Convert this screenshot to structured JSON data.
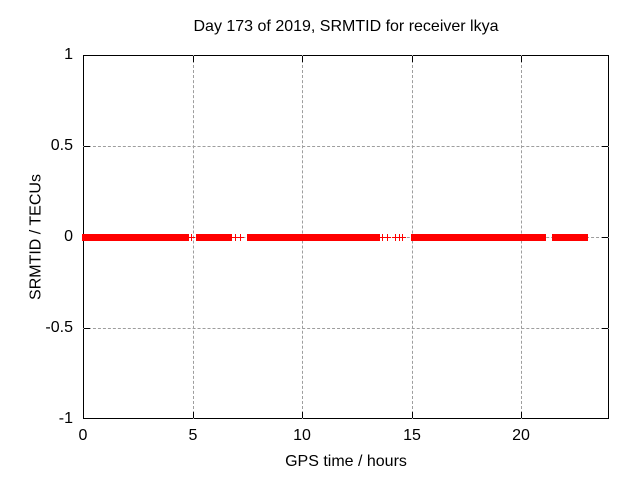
{
  "chart_data": {
    "type": "scatter",
    "title": "Day 173 of 2019, SRMTID for receiver lkya",
    "xlabel": "GPS time / hours",
    "ylabel": "SRMTID / TECUs",
    "xlim": [
      0,
      24
    ],
    "ylim": [
      -1,
      1
    ],
    "x_ticks": [
      0,
      5,
      10,
      15,
      20
    ],
    "y_ticks": [
      -1,
      -0.5,
      0,
      0.5,
      1
    ],
    "grid": true,
    "grid_style": "dashed",
    "grid_color": "#9e9e9e",
    "border_color": "#000000",
    "legend": "none",
    "marker": "plus",
    "marker_color": "#ff0000",
    "series": [
      {
        "name": "SRMTID",
        "y_value": 0,
        "dense_intervals_hours": [
          [
            0.1,
            4.65
          ],
          [
            5.3,
            6.05
          ],
          [
            6.2,
            6.65
          ],
          [
            7.6,
            9.0
          ],
          [
            9.15,
            10.55
          ],
          [
            10.8,
            13.35
          ],
          [
            15.1,
            21.0
          ],
          [
            21.55,
            22.9
          ]
        ],
        "sparse_points_hours": [
          4.8,
          4.95,
          6.95,
          7.15,
          13.5,
          13.65,
          13.85,
          14.25,
          14.4,
          14.55
        ]
      }
    ]
  }
}
